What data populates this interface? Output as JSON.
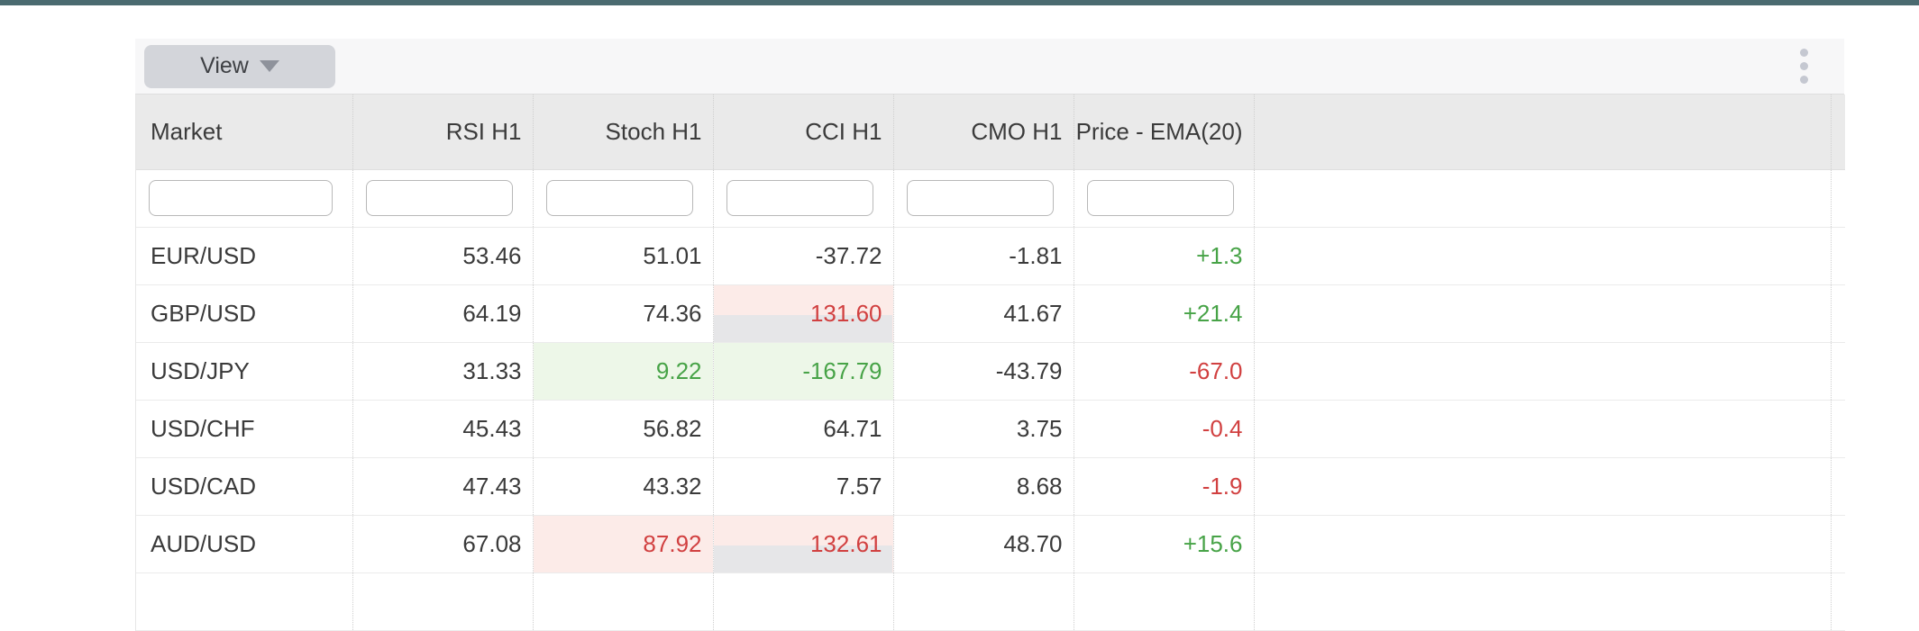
{
  "topbar": {
    "color": "#4b6b70"
  },
  "toolbar": {
    "view_button": {
      "label": "View"
    },
    "kebab_icon": "vertical-dots-menu"
  },
  "table": {
    "columns": [
      {
        "label": "Market"
      },
      {
        "label": "RSI H1"
      },
      {
        "label": "Stoch H1"
      },
      {
        "label": "CCI H1"
      },
      {
        "label": "CMO H1"
      },
      {
        "label": "Price - EMA(20)"
      },
      {
        "label": ""
      }
    ],
    "filter_placeholder": "",
    "rows": [
      {
        "market": "EUR/USD",
        "cells": {
          "rsi": {
            "value": "53.46",
            "class": ""
          },
          "stoch": {
            "value": "51.01",
            "class": ""
          },
          "cci": {
            "value": "-37.72",
            "class": ""
          },
          "cmo": {
            "value": "-1.81",
            "class": ""
          },
          "price": {
            "value": "+1.3",
            "class": "txt-up"
          }
        }
      },
      {
        "market": "GBP/USD",
        "cells": {
          "rsi": {
            "value": "64.19",
            "class": ""
          },
          "stoch": {
            "value": "74.36",
            "class": ""
          },
          "cci": {
            "value": "131.60",
            "class": "txt-dn bg-dn has-gauge"
          },
          "cmo": {
            "value": "41.67",
            "class": ""
          },
          "price": {
            "value": "+21.4",
            "class": "txt-up"
          }
        }
      },
      {
        "market": "USD/JPY",
        "cells": {
          "rsi": {
            "value": "31.33",
            "class": ""
          },
          "stoch": {
            "value": "9.22",
            "class": "txt-up bg-up"
          },
          "cci": {
            "value": "-167.79",
            "class": "txt-up bg-up"
          },
          "cmo": {
            "value": "-43.79",
            "class": ""
          },
          "price": {
            "value": "-67.0",
            "class": "txt-dn"
          }
        }
      },
      {
        "market": "USD/CHF",
        "cells": {
          "rsi": {
            "value": "45.43",
            "class": ""
          },
          "stoch": {
            "value": "56.82",
            "class": ""
          },
          "cci": {
            "value": "64.71",
            "class": ""
          },
          "cmo": {
            "value": "3.75",
            "class": ""
          },
          "price": {
            "value": "-0.4",
            "class": "txt-dn"
          }
        }
      },
      {
        "market": "USD/CAD",
        "cells": {
          "rsi": {
            "value": "47.43",
            "class": ""
          },
          "stoch": {
            "value": "43.32",
            "class": ""
          },
          "cci": {
            "value": "7.57",
            "class": ""
          },
          "cmo": {
            "value": "8.68",
            "class": ""
          },
          "price": {
            "value": "-1.9",
            "class": "txt-dn"
          }
        }
      },
      {
        "market": "AUD/USD",
        "cells": {
          "rsi": {
            "value": "67.08",
            "class": ""
          },
          "stoch": {
            "value": "87.92",
            "class": "txt-dn bg-dn"
          },
          "cci": {
            "value": "132.61",
            "class": "txt-dn bg-dn has-gauge"
          },
          "cmo": {
            "value": "48.70",
            "class": ""
          },
          "price": {
            "value": "+15.6",
            "class": "txt-up"
          }
        }
      }
    ]
  },
  "colors": {
    "accent_green_text": "#47a347",
    "accent_red_text": "#d14040",
    "flag_green_bg": "#edf7e8",
    "flag_red_bg": "#fcebe8",
    "gauge_bar": "#e6e6e8",
    "top_border": "#4b6b70"
  }
}
